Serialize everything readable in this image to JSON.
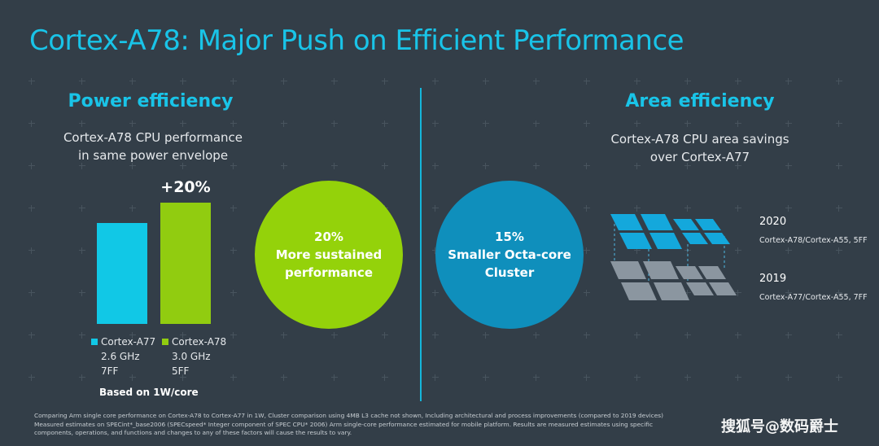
{
  "slide": {
    "title": "Cortex-A78: Major Push on Efficient Performance"
  },
  "power": {
    "heading": "Power efficiency",
    "subtitle_line1": "Cortex-A78 CPU performance",
    "subtitle_line2": "in same power envelope",
    "increase_label": "+20%",
    "based_on": "Based on 1W/core",
    "legend": [
      {
        "name": "Cortex-A77",
        "freq": "2.6 GHz",
        "node": "7FF",
        "color": "#11c8e6"
      },
      {
        "name": "Cortex-A78",
        "freq": "3.0 GHz",
        "node": "5FF",
        "color": "#91cc10"
      }
    ],
    "relative_performance": [
      1.0,
      1.2
    ],
    "circle": {
      "line1": "20%",
      "line2": "More sustained",
      "line3": "performance",
      "color": "#94d20a"
    }
  },
  "area": {
    "heading": "Area efficiency",
    "subtitle_line1": "Cortex-A78 CPU area savings",
    "subtitle_line2": "over Cortex-A77",
    "circle": {
      "line1": "15%",
      "line2": "Smaller Octa-core",
      "line3": "Cluster",
      "color": "#0f8fbc"
    },
    "year_2020": "2020",
    "config_2020": "Cortex-A78/Cortex-A55, 5FF",
    "year_2019": "2019",
    "config_2019": "Cortex-A77/Cortex-A55, 7FF",
    "tile_color_2020": "#14a8dc",
    "tile_color_2019": "#8b96a0"
  },
  "footer": {
    "disclaimer_1": "Comparing Arm single core performance on Cortex-A78 to Cortex-A77 in 1W, Cluster comparison using 4MB L3 cache not shown, Including architectural and process improvements (compared to 2019 devices)",
    "disclaimer_2": "Measured estimates on SPECint*_base2006 (SPECspeed* Integer component of SPEC CPU* 2006) Arm single-core performance estimated for mobile platform. Results are measured estimates using specific",
    "disclaimer_3": "components, operations, and functions and changes to any of these factors will cause the results to vary.",
    "watermark": "搜狐号@数码爵士"
  }
}
